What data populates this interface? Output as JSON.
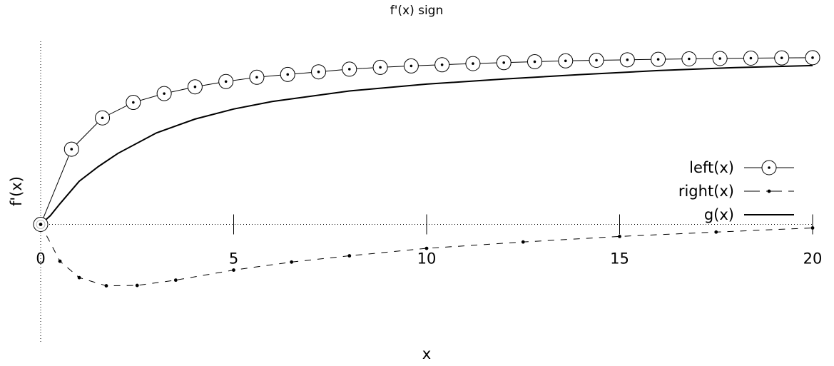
{
  "chart_data": {
    "type": "line",
    "title": "f'(x) sign",
    "xlabel": "x",
    "ylabel": "f'(x)",
    "xlim": [
      0,
      20
    ],
    "ylim": [
      -1.0,
      1.55
    ],
    "grid": false,
    "zero_axes": true,
    "legend_position": "right",
    "x_ticks": [
      0,
      5,
      10,
      15,
      20
    ],
    "x_tick_labels": [
      "0",
      "5",
      "10",
      "15",
      "20"
    ],
    "series": [
      {
        "name": "left(x)",
        "style": "line-circle-dot",
        "x": [
          0.0,
          0.8,
          1.6,
          2.4,
          3.2,
          4.0,
          4.8,
          5.6,
          6.4,
          7.2,
          8.0,
          8.8,
          9.6,
          10.4,
          11.2,
          12.0,
          12.8,
          13.6,
          14.4,
          15.2,
          16.0,
          16.8,
          17.6,
          18.4,
          19.2,
          20.0
        ],
        "y": [
          0.0,
          0.637,
          0.902,
          1.033,
          1.108,
          1.165,
          1.21,
          1.246,
          1.27,
          1.292,
          1.315,
          1.33,
          1.342,
          1.352,
          1.362,
          1.37,
          1.378,
          1.385,
          1.39,
          1.394,
          1.398,
          1.402,
          1.405,
          1.408,
          1.41,
          1.412
        ]
      },
      {
        "name": "right(x)",
        "style": "dash-dot",
        "x": [
          0.0,
          0.5,
          1.0,
          1.7,
          2.5,
          3.5,
          5.0,
          6.5,
          8.0,
          10.0,
          12.5,
          15.0,
          17.5,
          20.0
        ],
        "y": [
          0.0,
          -0.312,
          -0.451,
          -0.52,
          -0.517,
          -0.472,
          -0.387,
          -0.319,
          -0.266,
          -0.203,
          -0.149,
          -0.102,
          -0.065,
          -0.03
        ]
      },
      {
        "name": "g(x)",
        "style": "solid",
        "x": [
          0.0,
          0.25,
          0.5,
          1.0,
          1.5,
          2.0,
          3.0,
          4.0,
          5.0,
          6.0,
          8.0,
          10.0,
          12.0,
          14.0,
          16.0,
          18.0,
          20.0
        ],
        "y": [
          0.0,
          0.074,
          0.175,
          0.366,
          0.491,
          0.601,
          0.775,
          0.892,
          0.977,
          1.041,
          1.13,
          1.188,
          1.231,
          1.269,
          1.303,
          1.328,
          1.345
        ]
      }
    ]
  }
}
